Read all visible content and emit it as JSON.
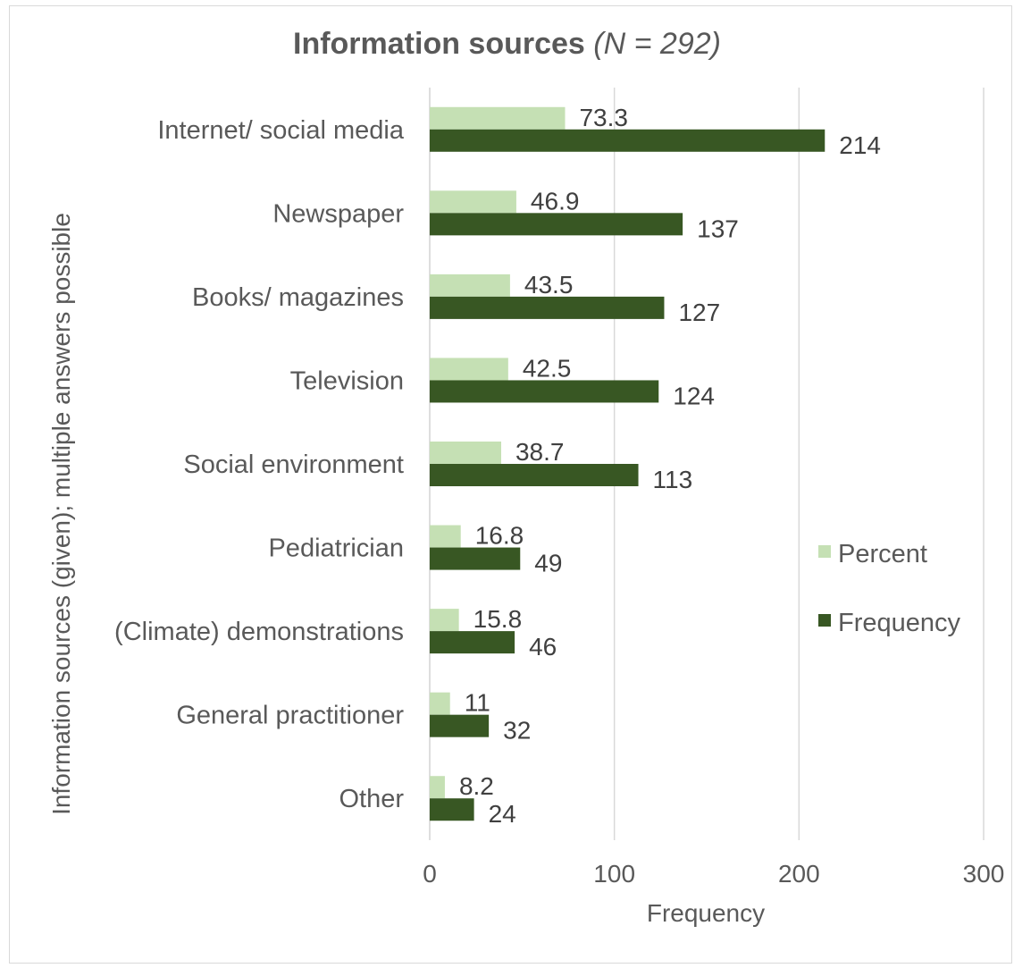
{
  "chart_data": {
    "type": "bar",
    "orientation": "horizontal",
    "title": "Information sources",
    "title_n": "(N = 292)",
    "xlabel": "Frequency",
    "ylabel": "Information sources (given); multiple answers possible",
    "xlim": [
      0,
      300
    ],
    "xticks": [
      0,
      100,
      200,
      300
    ],
    "grid": "vertical gridlines",
    "legend_position": "right",
    "categories": [
      "Internet/ social media",
      "Newspaper",
      "Books/ magazines",
      "Television",
      "Social environment",
      "Pediatrician",
      "(Climate) demonstrations",
      "General practitioner",
      "Other"
    ],
    "series": [
      {
        "name": "Percent",
        "color": "#c5e0b4",
        "values": [
          73.3,
          46.9,
          43.5,
          42.5,
          38.7,
          16.8,
          15.8,
          11,
          8.2
        ]
      },
      {
        "name": "Frequency",
        "color": "#385723",
        "values": [
          214,
          137,
          127,
          124,
          113,
          49,
          46,
          32,
          24
        ]
      }
    ]
  }
}
